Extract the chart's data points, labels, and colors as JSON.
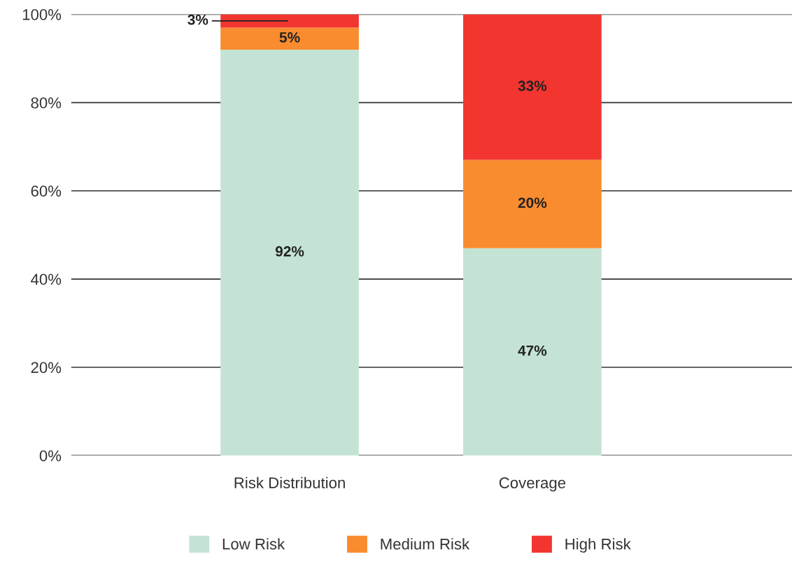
{
  "chart_data": {
    "type": "bar",
    "stacked": true,
    "categories": [
      "Risk Distribution",
      "Coverage"
    ],
    "series": [
      {
        "name": "Low Risk",
        "color": "#c5e3d5",
        "values": [
          92,
          47
        ],
        "value_labels": [
          "92%",
          "47%"
        ]
      },
      {
        "name": "Medium Risk",
        "color": "#f98c2f",
        "values": [
          5,
          20
        ],
        "value_labels": [
          "5%",
          "20%"
        ]
      },
      {
        "name": "High Risk",
        "color": "#f2362f",
        "values": [
          3,
          33
        ],
        "value_labels": [
          "3%",
          "33%"
        ]
      }
    ],
    "ylim": [
      0,
      100
    ],
    "yticks": [
      {
        "value": 0,
        "label": "0%"
      },
      {
        "value": 20,
        "label": "20%"
      },
      {
        "value": 40,
        "label": "40%"
      },
      {
        "value": 60,
        "label": "60%"
      },
      {
        "value": 80,
        "label": "80%"
      },
      {
        "value": 100,
        "label": "100%"
      }
    ],
    "grid": "y",
    "legend": "bottom"
  }
}
